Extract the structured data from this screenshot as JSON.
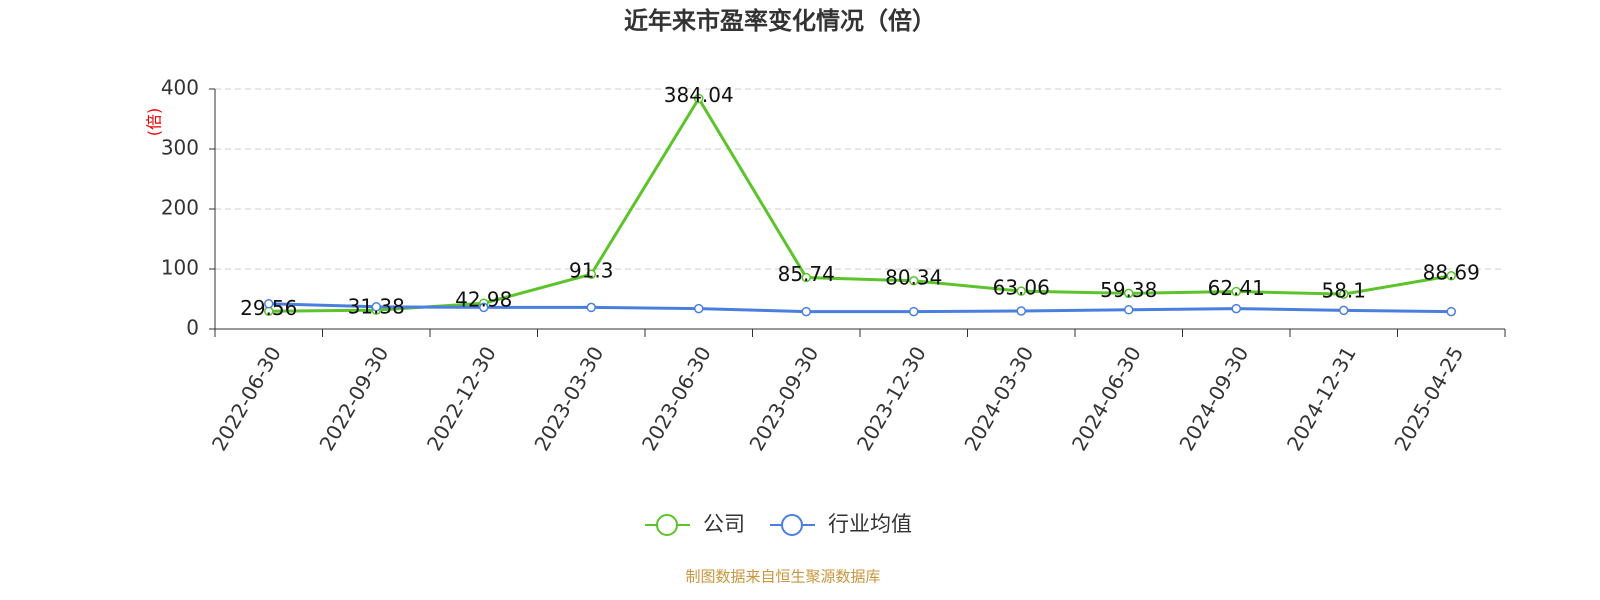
{
  "chart_data": {
    "type": "line",
    "title": "近年来市盈率变化情况（倍）",
    "y_label": "(倍)",
    "categories": [
      "2022-06-30",
      "2022-09-30",
      "2022-12-30",
      "2023-03-30",
      "2023-06-30",
      "2023-09-30",
      "2023-12-30",
      "2024-03-30",
      "2024-06-30",
      "2024-09-30",
      "2024-12-31",
      "2025-04-25"
    ],
    "series": [
      {
        "name": "公司",
        "color": "#5cc42a",
        "values": [
          29.56,
          31.38,
          42.98,
          91.3,
          384.04,
          85.74,
          80.34,
          63.06,
          59.38,
          62.41,
          58.1,
          88.69
        ],
        "show_labels": true
      },
      {
        "name": "行业均值",
        "color": "#4a7fe0",
        "values": [
          42,
          37,
          36,
          36,
          34,
          29,
          29,
          30,
          32,
          34,
          31,
          29
        ],
        "show_labels": false
      }
    ],
    "ylim": [
      0,
      400
    ],
    "yticks": [
      0,
      100,
      200,
      300,
      400
    ],
    "grid": true,
    "legend": "bottom",
    "note": "制图数据来自恒生聚源数据库"
  }
}
